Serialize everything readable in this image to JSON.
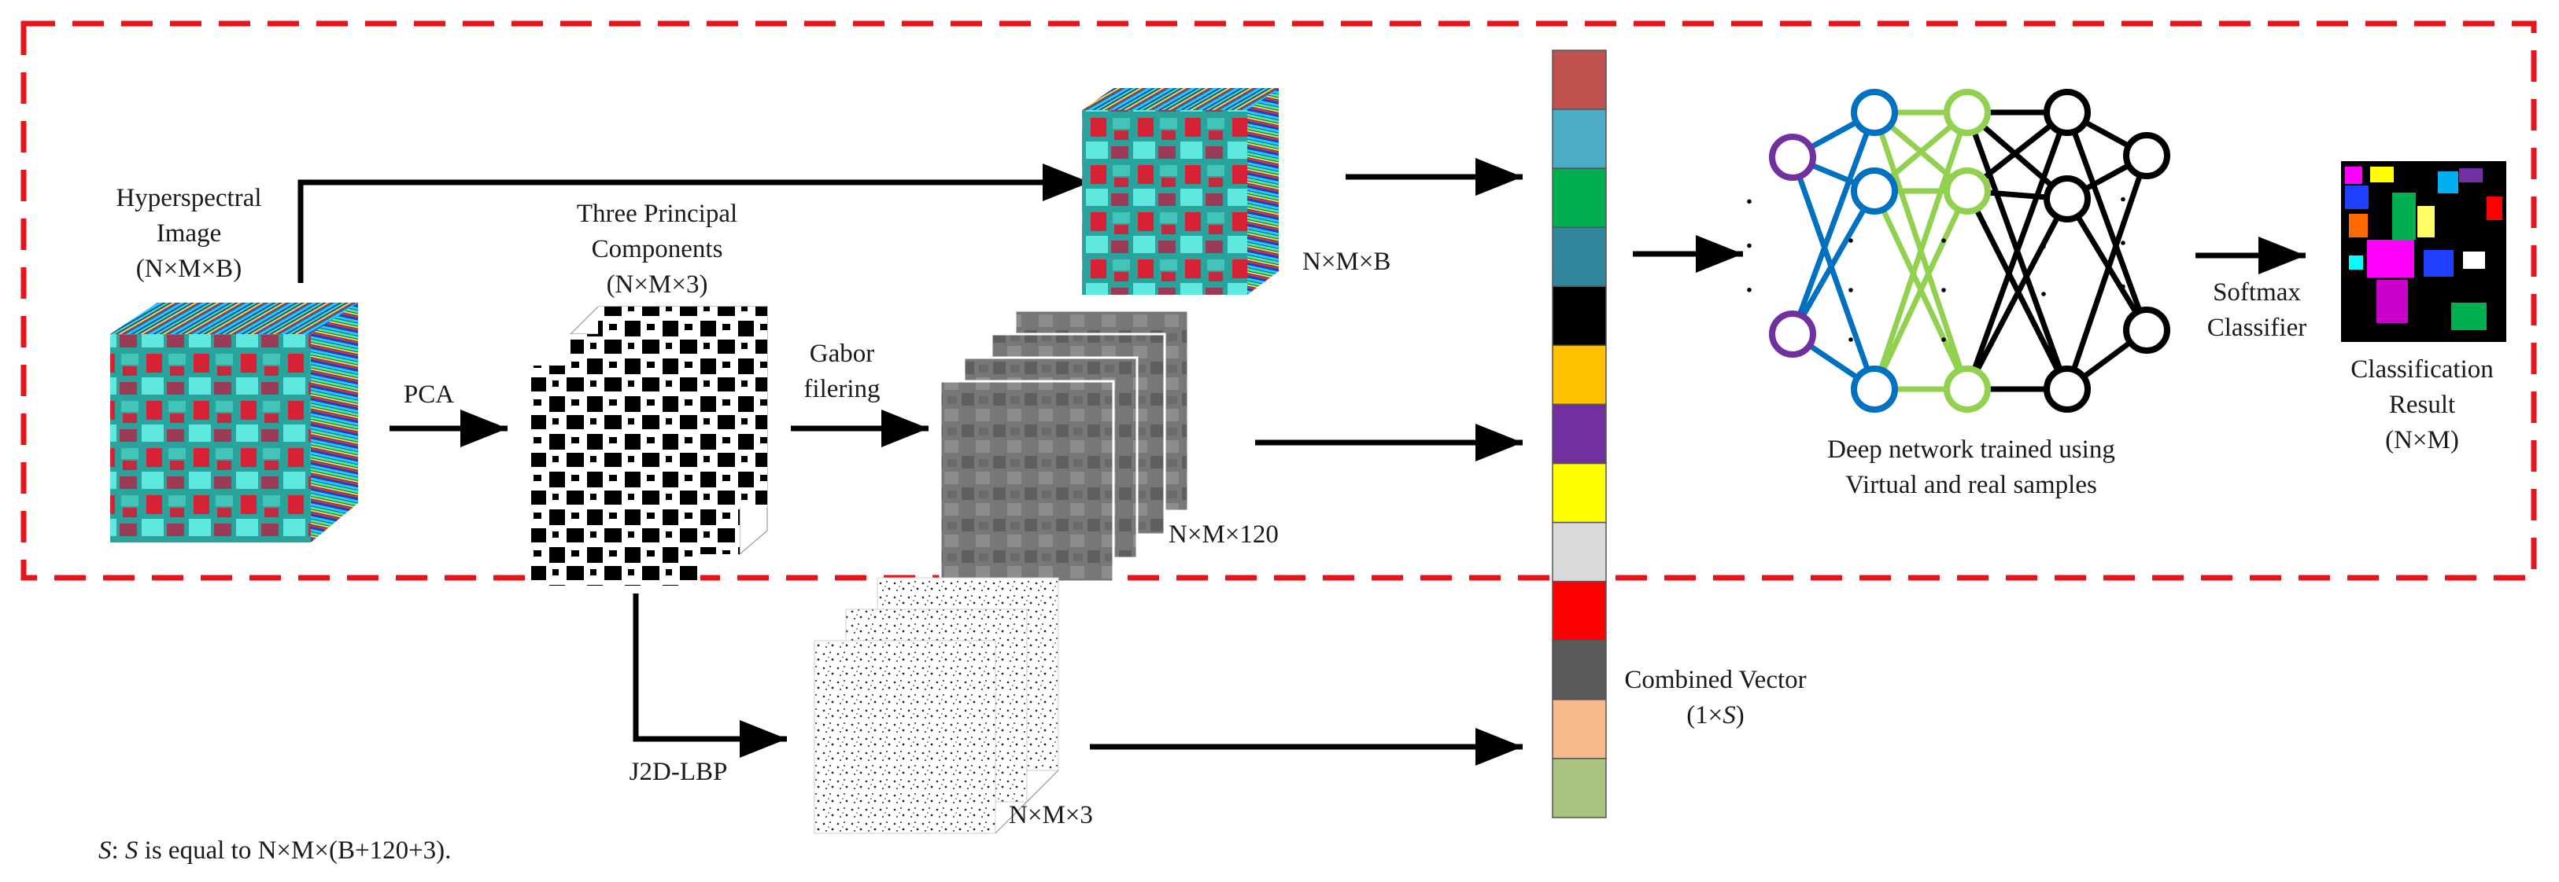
{
  "labels": {
    "hsi_line1": "Hyperspectral",
    "hsi_line2": "Image",
    "hsi_line3": "(N×M×B)",
    "pca": "PCA",
    "tpc_line1": "Three Principal",
    "tpc_line2": "Components",
    "tpc_line3": "(N×M×3)",
    "gabor_line1": "Gabor",
    "gabor_line2": "filering",
    "nmb": "N×M×B",
    "nm120": "N×M×120",
    "j2d": "J2D-LBP",
    "nm3": "N×M×3",
    "combined_line1": "Combined Vector",
    "combined_line2_pre": "(1×",
    "combined_line2_var": "S",
    "combined_line2_post": ")",
    "dnn_line1": "Deep network trained using",
    "dnn_line2": "Virtual and real samples",
    "softmax_line1": "Softmax",
    "softmax_line2": "Classifier",
    "result_line1": "Classification",
    "result_line2": "Result",
    "result_line3": "(N×M)",
    "footnote_var1": "S",
    "footnote_sep": ": ",
    "footnote_var2": "S",
    "footnote_text": " is equal to N×M×(B+120+3)."
  },
  "combined_vector_colors": [
    "#c0504d",
    "#4bacc6",
    "#00b050",
    "#31859c",
    "#000000",
    "#ffc000",
    "#7030a0",
    "#ffff00",
    "#d9d9d9",
    "#ff0000",
    "#595959",
    "#f7b98b",
    "#a9c47f"
  ],
  "dnn_colors": {
    "input": "#7030a0",
    "hidden1": "#0070c0",
    "hidden2": "#92d050",
    "hidden3": "#000000",
    "output": "#000000"
  },
  "colors": {
    "dashed_border": "#e8141b",
    "arrow": "#000000"
  }
}
